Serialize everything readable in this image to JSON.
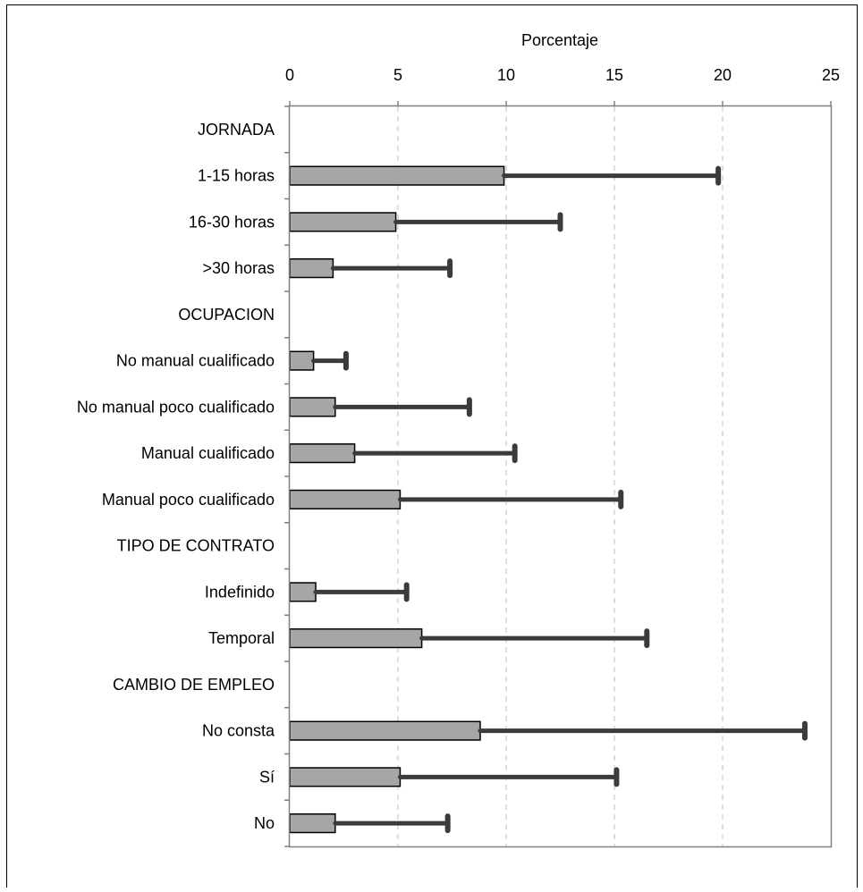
{
  "chart_data": {
    "type": "bar",
    "orientation": "horizontal",
    "xlabel": "Porcentaje",
    "xlim": [
      0,
      25
    ],
    "xticks": [
      0,
      5,
      10,
      15,
      20,
      25
    ],
    "grid": "vertical-dashed",
    "legend": "none",
    "categories": [
      "JORNADA",
      "1-15 horas",
      "16-30 horas",
      ">30 horas",
      "OCUPACION",
      "No manual cualificado",
      "No manual poco cualificado",
      "Manual cualificado",
      "Manual poco cualificado",
      "TIPO DE CONTRATO",
      "Indefinido",
      "Temporal",
      "CAMBIO DE EMPLEO",
      "No consta",
      "Sí",
      "No"
    ],
    "values": [
      null,
      9.9,
      4.9,
      2.0,
      null,
      1.1,
      2.1,
      3.0,
      5.1,
      null,
      1.2,
      6.1,
      null,
      8.8,
      5.1,
      2.1
    ],
    "error_upper": [
      null,
      19.8,
      12.5,
      7.4,
      null,
      2.6,
      8.3,
      10.4,
      15.3,
      null,
      5.4,
      16.5,
      null,
      23.8,
      15.1,
      7.3
    ],
    "colors": {
      "bar_fill": "#a6a6a6",
      "bar_stroke": "#000000",
      "error_bar": "#3b3b3b",
      "grid": "#bfbfbf",
      "axis": "#808080"
    }
  }
}
